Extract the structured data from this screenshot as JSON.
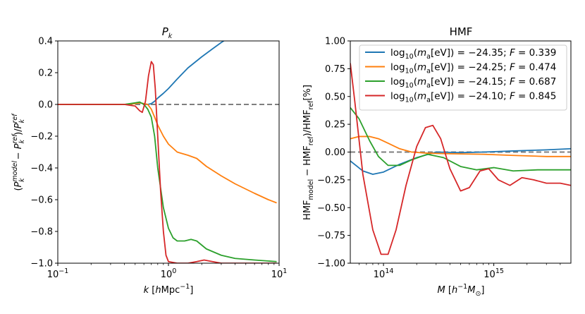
{
  "chart_data": [
    {
      "type": "line",
      "title": "Pk",
      "xlabel": "k [hMpc−1]",
      "ylabel": "(Pk model − Pk ref)/Pk ref",
      "xscale": "log",
      "xlim": [
        0.1,
        10
      ],
      "ylim": [
        -1.0,
        0.4
      ],
      "xticks": [
        0.1,
        1,
        10
      ],
      "xticklabels": [
        "10−1",
        "100",
        "101"
      ],
      "yticks": [
        -1.0,
        -0.8,
        -0.6,
        -0.4,
        -0.2,
        0.0,
        0.2,
        0.4
      ],
      "yticklabels": [
        "−1.0",
        "−0.8",
        "−0.6",
        "−0.4",
        "−0.2",
        "0.0",
        "0.2",
        "0.4"
      ],
      "reference_line": 0.0,
      "series": [
        {
          "color": "#1f77b4",
          "x": [
            0.1,
            0.4,
            0.5,
            0.55,
            0.6,
            0.65,
            0.7,
            0.75,
            0.8,
            0.9,
            1.0,
            1.2,
            1.5,
            2.0,
            2.5,
            3.0,
            3.5,
            4.0
          ],
          "y": [
            0.0,
            0.0,
            0.005,
            0.01,
            0.005,
            0.0,
            0.005,
            0.02,
            0.04,
            0.07,
            0.1,
            0.16,
            0.23,
            0.3,
            0.35,
            0.39,
            0.42,
            0.45
          ]
        },
        {
          "color": "#ff7f0e",
          "x": [
            0.1,
            0.4,
            0.5,
            0.55,
            0.6,
            0.65,
            0.7,
            0.75,
            0.8,
            0.9,
            1.0,
            1.2,
            1.5,
            1.8,
            2.2,
            3.0,
            4.0,
            6.0,
            8.0,
            9.5
          ],
          "y": [
            0.0,
            0.0,
            0.005,
            0.01,
            0.005,
            0.0,
            -0.03,
            -0.08,
            -0.13,
            -0.2,
            -0.25,
            -0.3,
            -0.32,
            -0.34,
            -0.39,
            -0.45,
            -0.5,
            -0.56,
            -0.6,
            -0.62
          ]
        },
        {
          "color": "#2ca02c",
          "x": [
            0.1,
            0.4,
            0.5,
            0.55,
            0.6,
            0.65,
            0.7,
            0.75,
            0.8,
            0.9,
            1.0,
            1.1,
            1.2,
            1.4,
            1.6,
            1.8,
            2.2,
            3.0,
            4.0,
            6.0,
            9.5
          ],
          "y": [
            0.0,
            0.0,
            0.01,
            0.015,
            0.0,
            -0.03,
            -0.08,
            -0.2,
            -0.4,
            -0.65,
            -0.78,
            -0.84,
            -0.86,
            -0.86,
            -0.85,
            -0.86,
            -0.91,
            -0.95,
            -0.97,
            -0.98,
            -0.99
          ]
        },
        {
          "color": "#d62728",
          "x": [
            0.1,
            0.4,
            0.5,
            0.55,
            0.58,
            0.62,
            0.66,
            0.7,
            0.73,
            0.76,
            0.8,
            0.85,
            0.9,
            0.95,
            1.0,
            1.2,
            1.5,
            1.8,
            2.1,
            2.5,
            3.0,
            4.0,
            6.0,
            9.5
          ],
          "y": [
            0.0,
            0.0,
            -0.01,
            -0.04,
            -0.05,
            0.02,
            0.18,
            0.27,
            0.25,
            0.1,
            -0.2,
            -0.55,
            -0.8,
            -0.95,
            -0.99,
            -1.0,
            -1.0,
            -0.99,
            -0.98,
            -0.99,
            -1.0,
            -1.0,
            -1.0,
            -1.0
          ]
        }
      ]
    },
    {
      "type": "line",
      "title": "HMF",
      "xlabel": "M [h−1M⊙]",
      "ylabel": "HMFmodel − HMFref)/HMFref[%]",
      "xscale": "log",
      "xlim": [
        50000000000000,
        5000000000000000
      ],
      "ylim": [
        -1.0,
        1.0
      ],
      "xticks": [
        100000000000000,
        1000000000000000
      ],
      "xticklabels": [
        "1014",
        "1015"
      ],
      "yticks": [
        -1.0,
        -0.75,
        -0.5,
        -0.25,
        0.0,
        0.25,
        0.5,
        0.75,
        1.0
      ],
      "yticklabels": [
        "−1.00",
        "−0.75",
        "−0.50",
        "−0.25",
        "0.00",
        "0.25",
        "0.50",
        "0.75",
        "1.00"
      ],
      "reference_line": 0.0,
      "legend_position": "top-right",
      "series": [
        {
          "name": "log10(ma[eV]) = −24.35; F = 0.339",
          "color": "#1f77b4",
          "x": [
            50000000000000,
            65000000000000,
            80000000000000,
            100000000000000,
            140000000000000,
            200000000000000,
            300000000000000,
            500000000000000,
            800000000000000,
            1500000000000000,
            3000000000000000,
            5000000000000000
          ],
          "y": [
            -0.08,
            -0.17,
            -0.2,
            -0.18,
            -0.11,
            -0.05,
            0.0,
            -0.005,
            0.0,
            0.01,
            0.02,
            0.03
          ]
        },
        {
          "name": "log10(ma[eV]) = −24.25; F = 0.474",
          "color": "#ff7f0e",
          "x": [
            50000000000000,
            60000000000000,
            75000000000000,
            90000000000000,
            110000000000000,
            140000000000000,
            180000000000000,
            250000000000000,
            400000000000000,
            800000000000000,
            1500000000000000,
            3000000000000000,
            5000000000000000
          ],
          "y": [
            0.12,
            0.14,
            0.14,
            0.12,
            0.08,
            0.03,
            0.0,
            -0.01,
            -0.015,
            -0.02,
            -0.03,
            -0.04,
            -0.04
          ]
        },
        {
          "name": "log10(ma[eV]) = −24.15; F = 0.687",
          "color": "#2ca02c",
          "x": [
            50000000000000,
            60000000000000,
            75000000000000,
            90000000000000,
            110000000000000,
            140000000000000,
            180000000000000,
            250000000000000,
            350000000000000,
            500000000000000,
            700000000000000,
            1000000000000000,
            1500000000000000,
            2500000000000000,
            5000000000000000
          ],
          "y": [
            0.4,
            0.3,
            0.1,
            -0.04,
            -0.12,
            -0.12,
            -0.07,
            -0.02,
            -0.05,
            -0.13,
            -0.16,
            -0.14,
            -0.17,
            -0.16,
            -0.16
          ]
        },
        {
          "name": "log10(ma[eV]) = −24.10; F = 0.845",
          "color": "#d62728",
          "x": [
            50000000000000,
            55000000000000,
            65000000000000,
            80000000000000,
            95000000000000,
            110000000000000,
            130000000000000,
            160000000000000,
            200000000000000,
            240000000000000,
            280000000000000,
            330000000000000,
            400000000000000,
            500000000000000,
            600000000000000,
            750000000000000,
            900000000000000,
            1100000000000000,
            1400000000000000,
            1800000000000000,
            2300000000000000,
            3000000000000000,
            4000000000000000,
            5000000000000000
          ],
          "y": [
            0.8,
            0.45,
            -0.2,
            -0.7,
            -0.92,
            -0.92,
            -0.7,
            -0.3,
            0.05,
            0.22,
            0.24,
            0.12,
            -0.15,
            -0.35,
            -0.32,
            -0.17,
            -0.15,
            -0.25,
            -0.3,
            -0.23,
            -0.25,
            -0.28,
            -0.28,
            -0.3
          ]
        }
      ]
    }
  ]
}
